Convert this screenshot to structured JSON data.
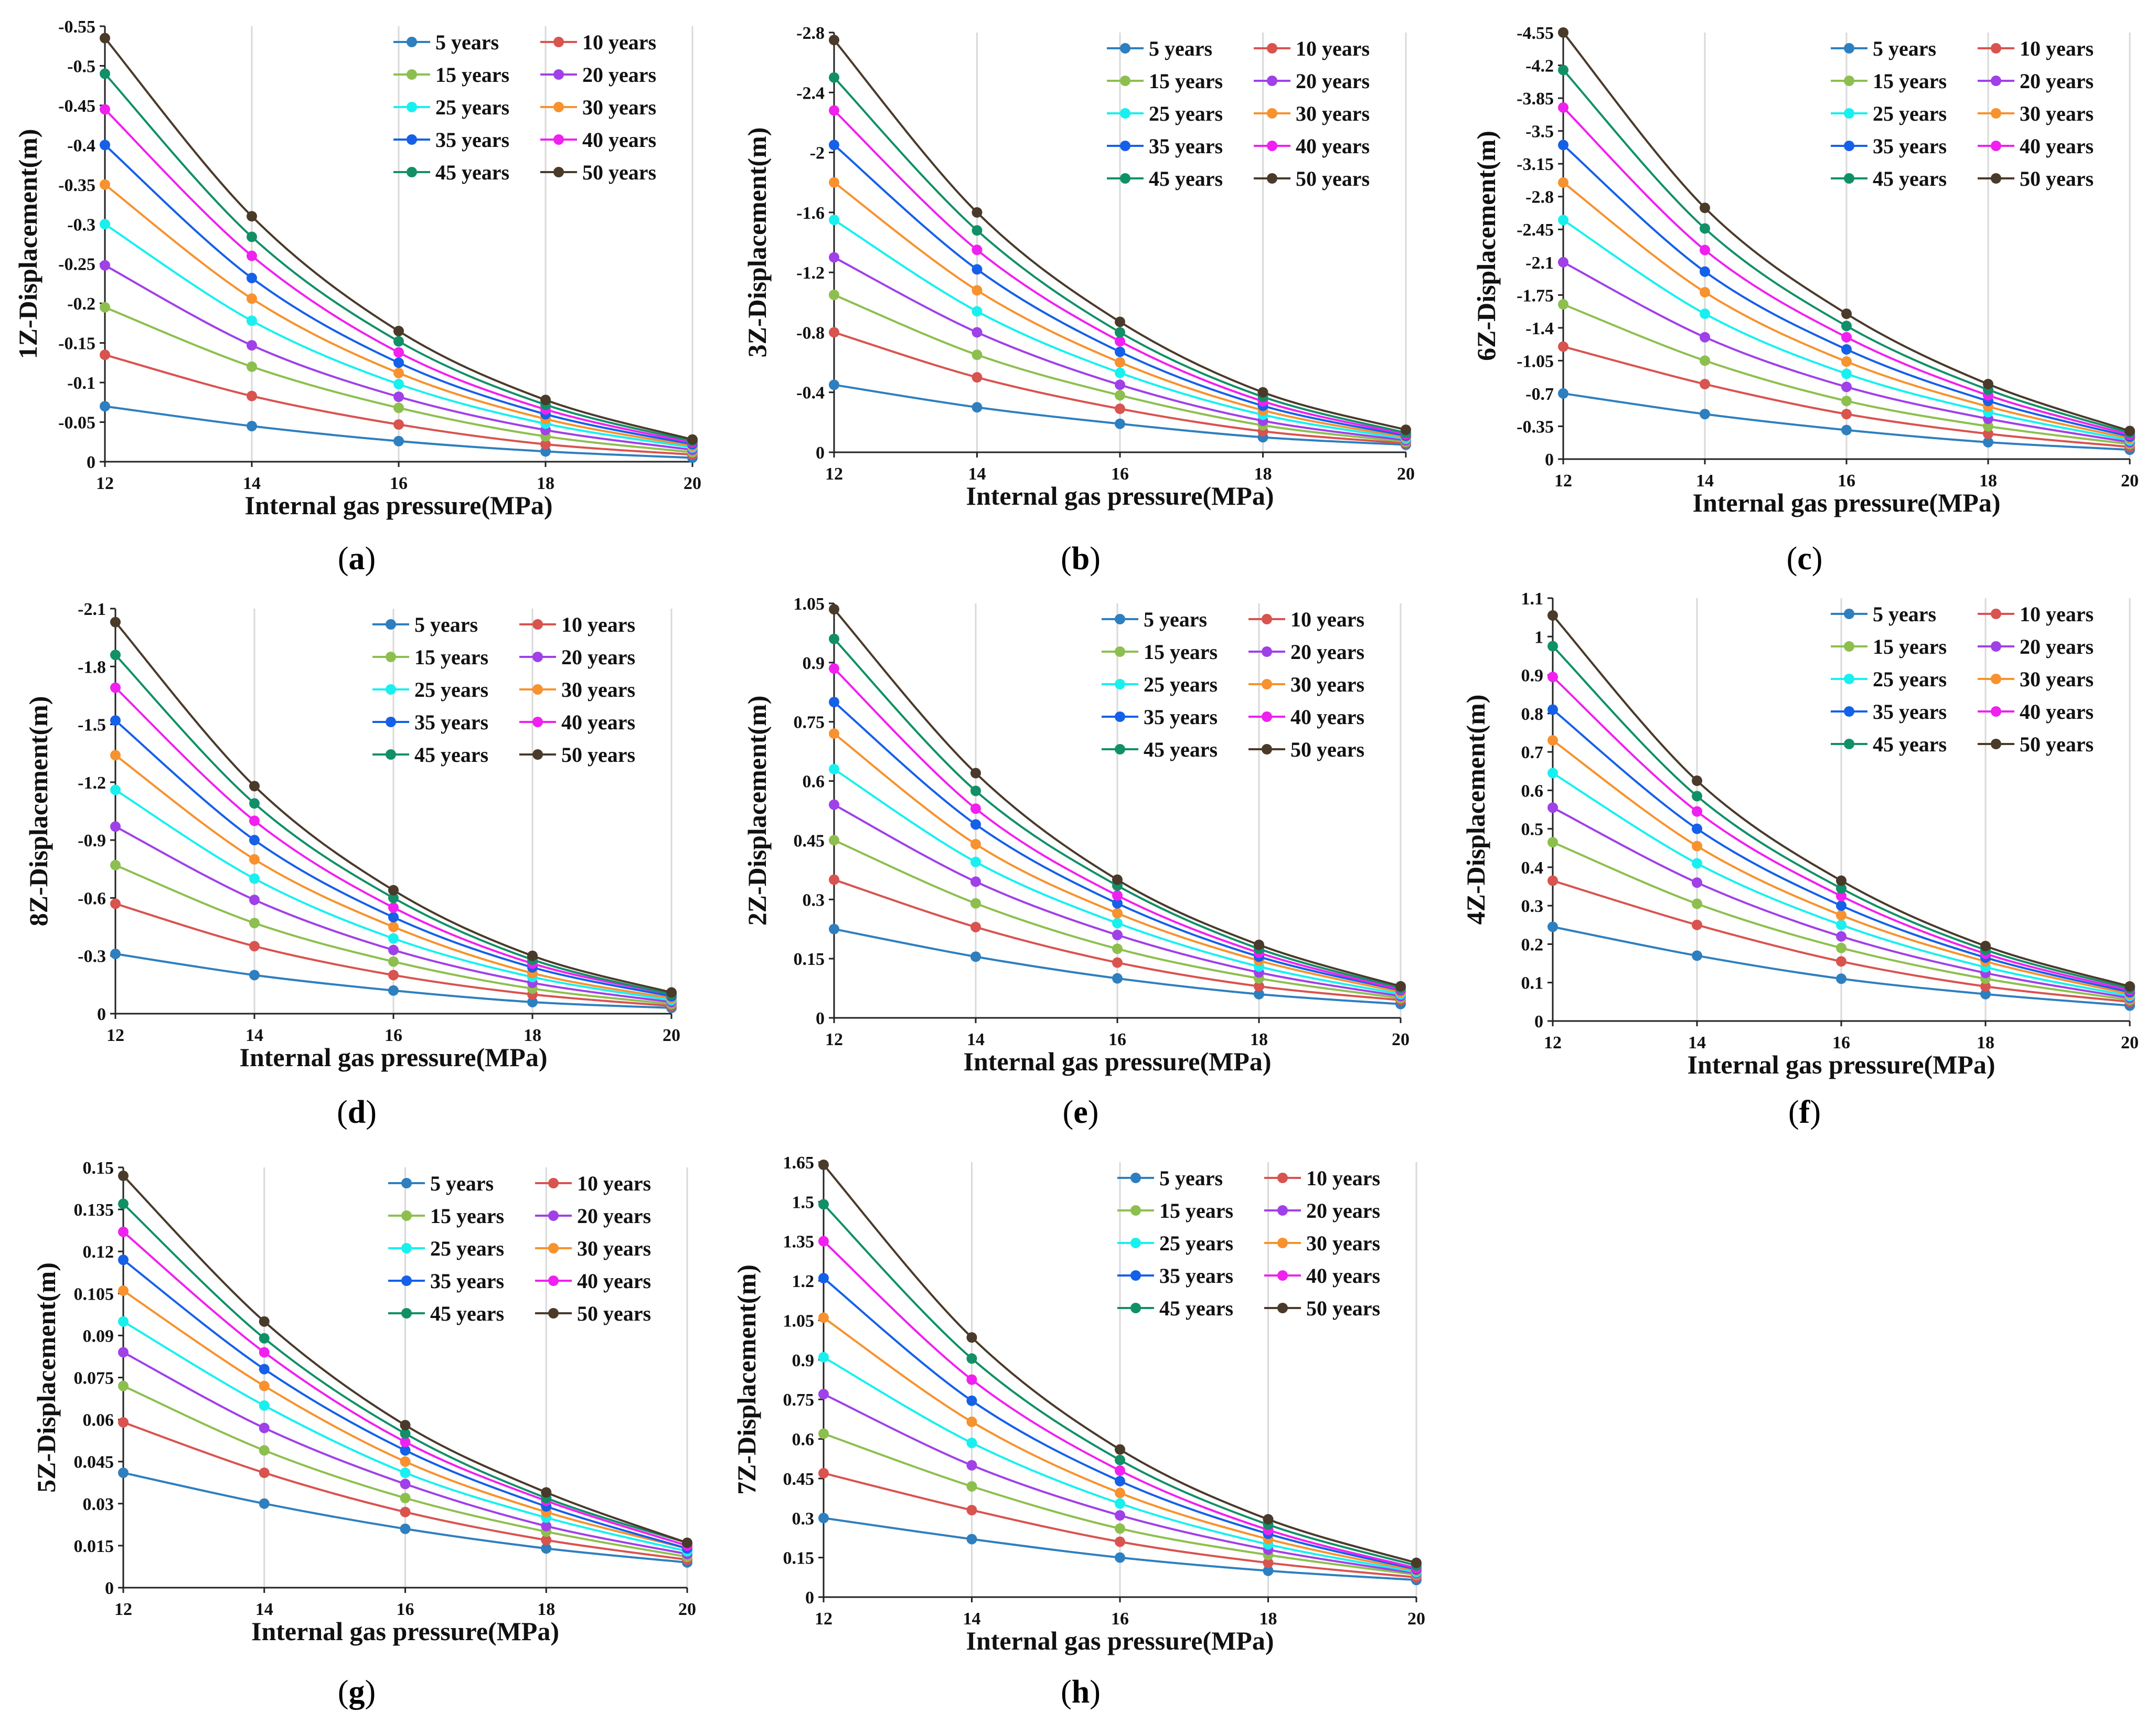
{
  "legend": {
    "series_names": [
      "5 years",
      "10 years",
      "15 years",
      "20 years",
      "25 years",
      "30 years",
      "35 years",
      "40 years",
      "45 years",
      "50 years"
    ],
    "colors": [
      "#2e7fbf",
      "#d9534f",
      "#8dbf4f",
      "#a040e8",
      "#18f0f0",
      "#f7922e",
      "#1560e8",
      "#f020f0",
      "#119068",
      "#4a3a2a"
    ]
  },
  "chart_data": [
    {
      "type": "line",
      "panel": "a",
      "xlabel": "Internal gas pressure(MPa)",
      "ylabel": "1Z-Displacement(m)",
      "x": [
        12,
        14,
        16,
        18,
        20
      ],
      "ylim": [
        0,
        -0.55
      ],
      "yticks_step": -0.05,
      "series": [
        {
          "name": "5 years",
          "values": [
            -0.07,
            -0.045,
            -0.026,
            -0.013,
            -0.005
          ]
        },
        {
          "name": "10 years",
          "values": [
            -0.135,
            -0.083,
            -0.047,
            -0.022,
            -0.009
          ]
        },
        {
          "name": "15 years",
          "values": [
            -0.195,
            -0.12,
            -0.068,
            -0.032,
            -0.012
          ]
        },
        {
          "name": "20 years",
          "values": [
            -0.248,
            -0.147,
            -0.082,
            -0.04,
            -0.015
          ]
        },
        {
          "name": "25 years",
          "values": [
            -0.3,
            -0.178,
            -0.098,
            -0.048,
            -0.018
          ]
        },
        {
          "name": "30 years",
          "values": [
            -0.35,
            -0.206,
            -0.112,
            -0.054,
            -0.02
          ]
        },
        {
          "name": "35 years",
          "values": [
            -0.4,
            -0.232,
            -0.125,
            -0.06,
            -0.022
          ]
        },
        {
          "name": "40 years",
          "values": [
            -0.445,
            -0.26,
            -0.138,
            -0.066,
            -0.024
          ]
        },
        {
          "name": "45 years",
          "values": [
            -0.49,
            -0.284,
            -0.152,
            -0.072,
            -0.026
          ]
        },
        {
          "name": "50 years",
          "values": [
            -0.535,
            -0.31,
            -0.165,
            -0.078,
            -0.028
          ]
        }
      ]
    },
    {
      "type": "line",
      "panel": "b",
      "xlabel": "Internal gas pressure(MPa)",
      "ylabel": "3Z-Displacement(m)",
      "x": [
        12,
        14,
        16,
        18,
        20
      ],
      "ylim": [
        0,
        -2.8
      ],
      "yticks_step": -0.4,
      "series": [
        {
          "name": "5 years",
          "values": [
            -0.45,
            -0.3,
            -0.19,
            -0.1,
            -0.05
          ]
        },
        {
          "name": "10 years",
          "values": [
            -0.8,
            -0.5,
            -0.29,
            -0.14,
            -0.06
          ]
        },
        {
          "name": "15 years",
          "values": [
            -1.05,
            -0.65,
            -0.38,
            -0.18,
            -0.07
          ]
        },
        {
          "name": "20 years",
          "values": [
            -1.3,
            -0.8,
            -0.45,
            -0.21,
            -0.08
          ]
        },
        {
          "name": "25 years",
          "values": [
            -1.55,
            -0.94,
            -0.53,
            -0.25,
            -0.09
          ]
        },
        {
          "name": "30 years",
          "values": [
            -1.8,
            -1.08,
            -0.6,
            -0.28,
            -0.1
          ]
        },
        {
          "name": "35 years",
          "values": [
            -2.05,
            -1.22,
            -0.67,
            -0.31,
            -0.11
          ]
        },
        {
          "name": "40 years",
          "values": [
            -2.28,
            -1.35,
            -0.74,
            -0.34,
            -0.12
          ]
        },
        {
          "name": "45 years",
          "values": [
            -2.5,
            -1.48,
            -0.8,
            -0.37,
            -0.13
          ]
        },
        {
          "name": "50 years",
          "values": [
            -2.75,
            -1.6,
            -0.87,
            -0.4,
            -0.15
          ]
        }
      ]
    },
    {
      "type": "line",
      "panel": "c",
      "xlabel": "Internal gas pressure(MPa)",
      "ylabel": "6Z-Displacement(m)",
      "x": [
        12,
        14,
        16,
        18,
        20
      ],
      "ylim": [
        0,
        -4.55
      ],
      "yticks_step": -0.35,
      "series": [
        {
          "name": "5 years",
          "values": [
            -0.7,
            -0.48,
            -0.31,
            -0.18,
            -0.1
          ]
        },
        {
          "name": "10 years",
          "values": [
            -1.2,
            -0.8,
            -0.48,
            -0.27,
            -0.13
          ]
        },
        {
          "name": "15 years",
          "values": [
            -1.65,
            -1.05,
            -0.62,
            -0.35,
            -0.16
          ]
        },
        {
          "name": "20 years",
          "values": [
            -2.1,
            -1.3,
            -0.77,
            -0.43,
            -0.18
          ]
        },
        {
          "name": "25 years",
          "values": [
            -2.55,
            -1.55,
            -0.91,
            -0.5,
            -0.2
          ]
        },
        {
          "name": "30 years",
          "values": [
            -2.95,
            -1.78,
            -1.04,
            -0.56,
            -0.22
          ]
        },
        {
          "name": "35 years",
          "values": [
            -3.35,
            -2.0,
            -1.17,
            -0.62,
            -0.24
          ]
        },
        {
          "name": "40 years",
          "values": [
            -3.75,
            -2.23,
            -1.3,
            -0.68,
            -0.26
          ]
        },
        {
          "name": "45 years",
          "values": [
            -4.15,
            -2.46,
            -1.42,
            -0.74,
            -0.28
          ]
        },
        {
          "name": "50 years",
          "values": [
            -4.55,
            -2.68,
            -1.55,
            -0.8,
            -0.3
          ]
        }
      ]
    },
    {
      "type": "line",
      "panel": "d",
      "xlabel": "Internal gas pressure(MPa)",
      "ylabel": "8Z-Displacement(m)",
      "x": [
        12,
        14,
        16,
        18,
        20
      ],
      "ylim": [
        0,
        -2.1
      ],
      "yticks_step": -0.3,
      "series": [
        {
          "name": "5 years",
          "values": [
            -0.31,
            -0.2,
            -0.12,
            -0.06,
            -0.03
          ]
        },
        {
          "name": "10 years",
          "values": [
            -0.57,
            -0.35,
            -0.2,
            -0.1,
            -0.04
          ]
        },
        {
          "name": "15 years",
          "values": [
            -0.77,
            -0.47,
            -0.27,
            -0.13,
            -0.05
          ]
        },
        {
          "name": "20 years",
          "values": [
            -0.97,
            -0.59,
            -0.33,
            -0.16,
            -0.06
          ]
        },
        {
          "name": "25 years",
          "values": [
            -1.16,
            -0.7,
            -0.39,
            -0.19,
            -0.07
          ]
        },
        {
          "name": "30 years",
          "values": [
            -1.34,
            -0.8,
            -0.45,
            -0.21,
            -0.08
          ]
        },
        {
          "name": "35 years",
          "values": [
            -1.52,
            -0.9,
            -0.5,
            -0.24,
            -0.09
          ]
        },
        {
          "name": "40 years",
          "values": [
            -1.69,
            -1.0,
            -0.55,
            -0.26,
            -0.1
          ]
        },
        {
          "name": "45 years",
          "values": [
            -1.86,
            -1.09,
            -0.6,
            -0.28,
            -0.1
          ]
        },
        {
          "name": "50 years",
          "values": [
            -2.03,
            -1.18,
            -0.64,
            -0.3,
            -0.11
          ]
        }
      ]
    },
    {
      "type": "line",
      "panel": "e",
      "xlabel": "Internal gas pressure(MPa)",
      "ylabel": "2Z-Displacement(m)",
      "x": [
        12,
        14,
        16,
        18,
        20
      ],
      "ylim": [
        0,
        1.05
      ],
      "yticks_step": 0.15,
      "series": [
        {
          "name": "5 years",
          "values": [
            0.225,
            0.155,
            0.1,
            0.06,
            0.035
          ]
        },
        {
          "name": "10 years",
          "values": [
            0.35,
            0.23,
            0.14,
            0.08,
            0.045
          ]
        },
        {
          "name": "15 years",
          "values": [
            0.45,
            0.29,
            0.175,
            0.1,
            0.05
          ]
        },
        {
          "name": "20 years",
          "values": [
            0.54,
            0.345,
            0.21,
            0.115,
            0.055
          ]
        },
        {
          "name": "25 years",
          "values": [
            0.63,
            0.395,
            0.24,
            0.13,
            0.06
          ]
        },
        {
          "name": "30 years",
          "values": [
            0.72,
            0.44,
            0.265,
            0.145,
            0.065
          ]
        },
        {
          "name": "35 years",
          "values": [
            0.8,
            0.49,
            0.29,
            0.155,
            0.07
          ]
        },
        {
          "name": "40 years",
          "values": [
            0.885,
            0.53,
            0.31,
            0.165,
            0.072
          ]
        },
        {
          "name": "45 years",
          "values": [
            0.96,
            0.575,
            0.335,
            0.175,
            0.076
          ]
        },
        {
          "name": "50 years",
          "values": [
            1.035,
            0.62,
            0.35,
            0.185,
            0.08
          ]
        }
      ]
    },
    {
      "type": "line",
      "panel": "f",
      "xlabel": "Internal gas pressure(MPa)",
      "ylabel": "4Z-Displacement(m)",
      "x": [
        12,
        14,
        16,
        18,
        20
      ],
      "ylim": [
        0,
        1.1
      ],
      "yticks_step": 0.1,
      "series": [
        {
          "name": "5 years",
          "values": [
            0.245,
            0.17,
            0.11,
            0.07,
            0.04
          ]
        },
        {
          "name": "10 years",
          "values": [
            0.365,
            0.25,
            0.155,
            0.09,
            0.05
          ]
        },
        {
          "name": "15 years",
          "values": [
            0.465,
            0.305,
            0.19,
            0.11,
            0.055
          ]
        },
        {
          "name": "20 years",
          "values": [
            0.555,
            0.36,
            0.22,
            0.125,
            0.06
          ]
        },
        {
          "name": "25 years",
          "values": [
            0.645,
            0.41,
            0.25,
            0.14,
            0.065
          ]
        },
        {
          "name": "30 years",
          "values": [
            0.73,
            0.455,
            0.275,
            0.155,
            0.07
          ]
        },
        {
          "name": "35 years",
          "values": [
            0.81,
            0.5,
            0.3,
            0.165,
            0.075
          ]
        },
        {
          "name": "40 years",
          "values": [
            0.895,
            0.545,
            0.325,
            0.175,
            0.08
          ]
        },
        {
          "name": "45 years",
          "values": [
            0.975,
            0.585,
            0.345,
            0.185,
            0.085
          ]
        },
        {
          "name": "50 years",
          "values": [
            1.055,
            0.625,
            0.365,
            0.195,
            0.09
          ]
        }
      ]
    },
    {
      "type": "line",
      "panel": "g",
      "xlabel": "Internal gas pressure(MPa)",
      "ylabel": "5Z-Displacement(m)",
      "x": [
        12,
        14,
        16,
        18,
        20
      ],
      "ylim": [
        0,
        0.15
      ],
      "yticks_step": 0.015,
      "series": [
        {
          "name": "5 years",
          "values": [
            0.041,
            0.03,
            0.021,
            0.014,
            0.009
          ]
        },
        {
          "name": "10 years",
          "values": [
            0.059,
            0.041,
            0.027,
            0.017,
            0.01
          ]
        },
        {
          "name": "15 years",
          "values": [
            0.072,
            0.049,
            0.032,
            0.02,
            0.011
          ]
        },
        {
          "name": "20 years",
          "values": [
            0.084,
            0.057,
            0.037,
            0.022,
            0.012
          ]
        },
        {
          "name": "25 years",
          "values": [
            0.095,
            0.065,
            0.041,
            0.025,
            0.013
          ]
        },
        {
          "name": "30 years",
          "values": [
            0.106,
            0.072,
            0.045,
            0.027,
            0.014
          ]
        },
        {
          "name": "35 years",
          "values": [
            0.117,
            0.078,
            0.049,
            0.029,
            0.014
          ]
        },
        {
          "name": "40 years",
          "values": [
            0.127,
            0.084,
            0.052,
            0.031,
            0.015
          ]
        },
        {
          "name": "45 years",
          "values": [
            0.137,
            0.089,
            0.055,
            0.032,
            0.016
          ]
        },
        {
          "name": "50 years",
          "values": [
            0.147,
            0.095,
            0.058,
            0.034,
            0.016
          ]
        }
      ]
    },
    {
      "type": "line",
      "panel": "h",
      "xlabel": "Internal gas pressure(MPa)",
      "ylabel": "7Z-Displacement(m)",
      "x": [
        12,
        14,
        16,
        18,
        20
      ],
      "ylim": [
        0,
        1.65
      ],
      "yticks_step": 0.15,
      "series": [
        {
          "name": "5 years",
          "values": [
            0.3,
            0.22,
            0.15,
            0.1,
            0.065
          ]
        },
        {
          "name": "10 years",
          "values": [
            0.47,
            0.33,
            0.21,
            0.13,
            0.075
          ]
        },
        {
          "name": "15 years",
          "values": [
            0.62,
            0.42,
            0.26,
            0.16,
            0.085
          ]
        },
        {
          "name": "20 years",
          "values": [
            0.77,
            0.5,
            0.31,
            0.18,
            0.09
          ]
        },
        {
          "name": "25 years",
          "values": [
            0.91,
            0.585,
            0.355,
            0.2,
            0.095
          ]
        },
        {
          "name": "30 years",
          "values": [
            1.06,
            0.665,
            0.395,
            0.22,
            0.1
          ]
        },
        {
          "name": "35 years",
          "values": [
            1.21,
            0.745,
            0.44,
            0.24,
            0.105
          ]
        },
        {
          "name": "40 years",
          "values": [
            1.35,
            0.825,
            0.48,
            0.255,
            0.11
          ]
        },
        {
          "name": "45 years",
          "values": [
            1.49,
            0.905,
            0.52,
            0.275,
            0.12
          ]
        },
        {
          "name": "50 years",
          "values": [
            1.64,
            0.985,
            0.56,
            0.295,
            0.13
          ]
        }
      ]
    }
  ],
  "captions": [
    "a",
    "b",
    "c",
    "d",
    "e",
    "f",
    "g",
    "h"
  ]
}
